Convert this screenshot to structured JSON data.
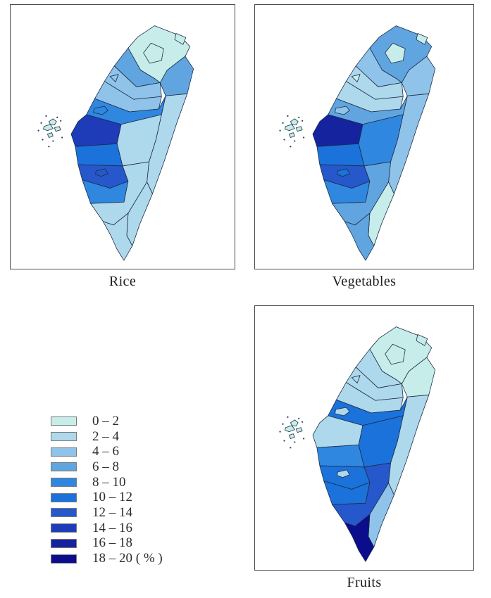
{
  "figure": {
    "background": "#ffffff"
  },
  "legend": {
    "classes": [
      {
        "label": "0 – 2",
        "color": "#c6ede9"
      },
      {
        "label": "2 – 4",
        "color": "#aed8ec"
      },
      {
        "label": "4 – 6",
        "color": "#8fc3e9"
      },
      {
        "label": "6 – 8",
        "color": "#60a5e0"
      },
      {
        "label": "8 – 10",
        "color": "#2f87e0"
      },
      {
        "label": "10 – 12",
        "color": "#1b72da"
      },
      {
        "label": "12 – 14",
        "color": "#2658cb"
      },
      {
        "label": "14 – 16",
        "color": "#1e3bb8"
      },
      {
        "label": "16 – 18",
        "color": "#15249e"
      },
      {
        "label": "18 – 20 ( % )",
        "color": "#0c0d8c"
      }
    ]
  },
  "maps": [
    {
      "id": "rice",
      "caption": "Rice",
      "regions": {
        "new-taipei": 0,
        "taipei": 0,
        "keelung": 0,
        "yilan": 3,
        "taoyuan": 3,
        "hsinchu": 2,
        "hsinchu-city": 2,
        "miaoli": 2,
        "taichung": 4,
        "taichung-city": 4,
        "changhua": 7,
        "nantou": 1,
        "yunlin": 5,
        "chiayi": 6,
        "chiayi-city": 6,
        "tainan": 4,
        "kaohsiung": 1,
        "pingtung": 1,
        "taitung": 1,
        "hualien": 1,
        "penghu": 0
      }
    },
    {
      "id": "vegetables",
      "caption": "Vegetables",
      "regions": {
        "new-taipei": 3,
        "taipei": 0,
        "keelung": 0,
        "yilan": 2,
        "taoyuan": 2,
        "hsinchu": 1,
        "hsinchu-city": 0,
        "miaoli": 1,
        "taichung": 3,
        "taichung-city": 2,
        "changhua": 8,
        "nantou": 4,
        "yunlin": 5,
        "chiayi": 6,
        "chiayi-city": 5,
        "tainan": 4,
        "kaohsiung": 3,
        "pingtung": 3,
        "taitung": 0,
        "hualien": 2,
        "penghu": 0
      }
    },
    {
      "id": "fruits",
      "caption": "Fruits",
      "regions": {
        "new-taipei": 0,
        "taipei": 0,
        "keelung": 0,
        "yilan": 0,
        "taoyuan": 1,
        "hsinchu": 1,
        "hsinchu-city": 1,
        "miaoli": 1,
        "taichung": 5,
        "taichung-city": 1,
        "changhua": 1,
        "nantou": 5,
        "yunlin": 4,
        "chiayi": 5,
        "chiayi-city": 1,
        "tainan": 5,
        "kaohsiung": 6,
        "pingtung": 9,
        "taitung": 2,
        "hualien": 1,
        "penghu": 0
      }
    }
  ]
}
